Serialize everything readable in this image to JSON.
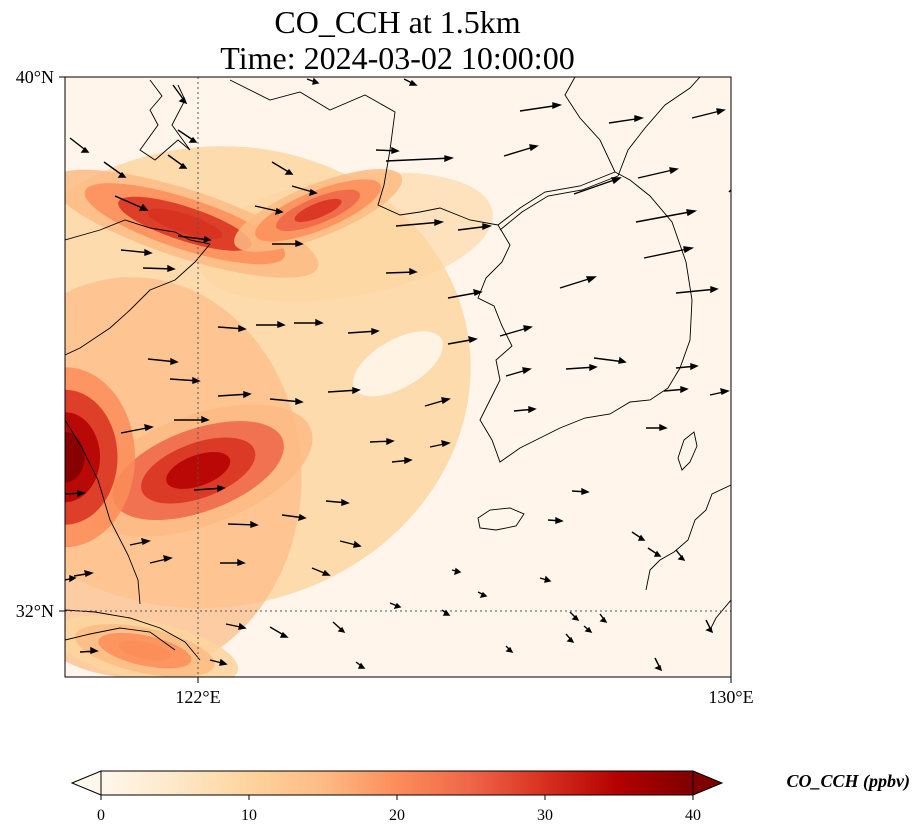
{
  "title": {
    "line1": "CO_CCH at 1.5km",
    "line2": "Time: 2024-03-02 10:00:00"
  },
  "axes": {
    "lat_ticks": [
      {
        "value": 40,
        "label": "40°N"
      },
      {
        "value": 32,
        "label": "32°N"
      }
    ],
    "lon_ticks": [
      {
        "value": 122,
        "label": "122°E"
      },
      {
        "value": 130,
        "label": "130°E"
      }
    ],
    "lon_range": [
      120,
      130
    ],
    "lat_range": [
      31,
      40
    ],
    "gridlines": "dotted"
  },
  "colorbar": {
    "label": "CO_CCH (ppbv)",
    "ticks": [
      "0",
      "10",
      "20",
      "30",
      "40"
    ],
    "min": 0,
    "max": 40,
    "colormap": "OrRd",
    "extend": "both"
  },
  "chart_data": {
    "type": "heatmap",
    "variable": "CO_CCH",
    "units": "ppbv",
    "level": "1.5km",
    "time": "2024-03-02 10:00:00",
    "plumes": [
      {
        "name": "northern band",
        "lon": 121.8,
        "lat": 37.8,
        "peak": 32
      },
      {
        "name": "band east",
        "lon": 123.8,
        "lat": 38.0,
        "peak": 30
      },
      {
        "name": "central core",
        "lon": 122.0,
        "lat": 34.1,
        "peak": 36
      },
      {
        "name": "west edge",
        "lon": 120.0,
        "lat": 34.3,
        "peak": 40
      },
      {
        "name": "southern patch",
        "lon": 121.2,
        "lat": 31.4,
        "peak": 22
      }
    ]
  }
}
